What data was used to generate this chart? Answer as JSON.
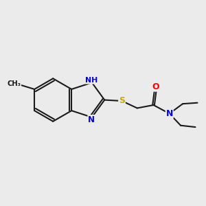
{
  "background_color": "#ebebeb",
  "bond_color": "#1a1a1a",
  "atom_colors": {
    "N": "#0000ee",
    "S": "#ccaa00",
    "O": "#ff0000",
    "C": "#1a1a1a",
    "H": "#444444"
  },
  "figsize": [
    3.0,
    3.0
  ],
  "dpi": 100
}
